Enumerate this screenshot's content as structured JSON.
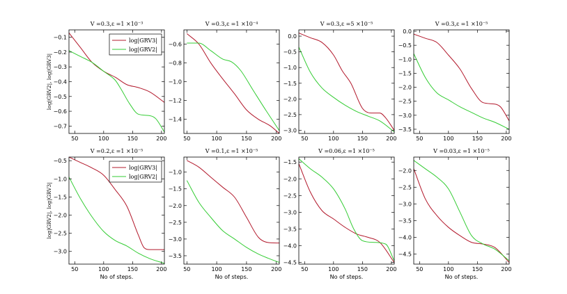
{
  "figure": {
    "ylabel": "log|GRV2|,   log|GRV3|",
    "xlabel": "No of steps."
  },
  "legend": {
    "series3_label": "log|GRV3|",
    "series2_label": "log|GRV2|"
  },
  "colors": {
    "grv3": "#b2182b",
    "grv2": "#33cc33",
    "axes": "#000000"
  },
  "chart_data": [
    {
      "type": "line",
      "title": "V =0.3,ε =1 ×10⁻³",
      "xlabel": "",
      "ylabel": "log|GRV2|,   log|GRV3|",
      "xlim": [
        40,
        205
      ],
      "ylim": [
        -0.75,
        -0.05
      ],
      "xticks": [
        50,
        100,
        150,
        200
      ],
      "yticks": [
        -0.1,
        -0.2,
        -0.3,
        -0.4,
        -0.5,
        -0.6,
        -0.7
      ],
      "ytick_labels": [
        "−0.1",
        "−0.2",
        "−0.3",
        "−0.4",
        "−0.5",
        "−0.6",
        "−0.7"
      ],
      "legend": true,
      "series": [
        {
          "name": "log|GRV3|",
          "color": "#b2182b",
          "x": [
            40,
            60,
            80,
            100,
            120,
            140,
            160,
            180,
            205
          ],
          "y": [
            -0.07,
            -0.17,
            -0.27,
            -0.33,
            -0.37,
            -0.42,
            -0.44,
            -0.47,
            -0.54
          ]
        },
        {
          "name": "log|GRV2|",
          "color": "#33cc33",
          "x": [
            40,
            60,
            80,
            100,
            120,
            130,
            145,
            160,
            180,
            190,
            205
          ],
          "y": [
            -0.19,
            -0.23,
            -0.27,
            -0.33,
            -0.39,
            -0.45,
            -0.55,
            -0.62,
            -0.63,
            -0.65,
            -0.74
          ]
        }
      ]
    },
    {
      "type": "line",
      "title": "V =0.3,ε =1 ×10⁻⁴",
      "xlabel": "",
      "ylabel": "",
      "xlim": [
        45,
        205
      ],
      "ylim": [
        -1.55,
        -0.45
      ],
      "xticks": [
        50,
        100,
        150,
        200
      ],
      "yticks": [
        -0.6,
        -0.8,
        -1.0,
        -1.2,
        -1.4
      ],
      "ytick_labels": [
        "−0.6",
        "−0.8",
        "−1.0",
        "−1.2",
        "−1.4"
      ],
      "legend": false,
      "series": [
        {
          "name": "log|GRV3|",
          "color": "#b2182b",
          "x": [
            50,
            70,
            90,
            110,
            130,
            150,
            170,
            190,
            205
          ],
          "y": [
            -0.49,
            -0.6,
            -0.8,
            -0.97,
            -1.13,
            -1.3,
            -1.4,
            -1.47,
            -1.55
          ]
        },
        {
          "name": "log|GRV2|",
          "color": "#33cc33",
          "x": [
            50,
            70,
            90,
            110,
            125,
            140,
            160,
            180,
            205
          ],
          "y": [
            -0.59,
            -0.59,
            -0.67,
            -0.76,
            -0.79,
            -0.88,
            -1.08,
            -1.28,
            -1.52
          ]
        }
      ]
    },
    {
      "type": "line",
      "title": "V =0.3,ε =5 ×10⁻⁵",
      "xlabel": "",
      "ylabel": "",
      "xlim": [
        40,
        205
      ],
      "ylim": [
        -3.1,
        0.2
      ],
      "xticks": [
        50,
        100,
        150,
        200
      ],
      "yticks": [
        0.0,
        -0.5,
        -1.0,
        -1.5,
        -2.0,
        -2.5,
        -3.0
      ],
      "ytick_labels": [
        "0.0",
        "−0.5",
        "−1.0",
        "−1.5",
        "−2.0",
        "−2.5",
        "−3.0"
      ],
      "legend": false,
      "series": [
        {
          "name": "log|GRV3|",
          "color": "#b2182b",
          "x": [
            40,
            60,
            80,
            100,
            115,
            130,
            150,
            165,
            180,
            190,
            205
          ],
          "y": [
            0.1,
            -0.05,
            -0.2,
            -0.6,
            -1.1,
            -1.5,
            -2.3,
            -2.45,
            -2.45,
            -2.6,
            -3.0
          ]
        },
        {
          "name": "log|GRV2|",
          "color": "#33cc33",
          "x": [
            40,
            60,
            80,
            100,
            120,
            140,
            160,
            180,
            205
          ],
          "y": [
            -0.35,
            -1.15,
            -1.65,
            -1.95,
            -2.2,
            -2.4,
            -2.55,
            -2.7,
            -3.05
          ]
        }
      ]
    },
    {
      "type": "line",
      "title": "V =0.3,ε =1 ×10⁻⁵",
      "xlabel": "",
      "ylabel": "",
      "xlim": [
        40,
        205
      ],
      "ylim": [
        -3.65,
        0.05
      ],
      "xticks": [
        50,
        100,
        150,
        200
      ],
      "yticks": [
        0.0,
        -0.5,
        -1.0,
        -1.5,
        -2.0,
        -2.5,
        -3.0,
        -3.5
      ],
      "ytick_labels": [
        "0.0",
        "−0.5",
        "−1.0",
        "−1.5",
        "−2.0",
        "−2.5",
        "−3.0",
        "−3.5"
      ],
      "legend": false,
      "series": [
        {
          "name": "log|GRV3|",
          "color": "#b2182b",
          "x": [
            40,
            60,
            80,
            100,
            120,
            140,
            160,
            180,
            190,
            205
          ],
          "y": [
            -0.1,
            -0.25,
            -0.4,
            -0.85,
            -1.35,
            -2.05,
            -2.55,
            -2.6,
            -2.7,
            -3.2
          ]
        },
        {
          "name": "log|GRV2|",
          "color": "#33cc33",
          "x": [
            40,
            60,
            80,
            100,
            120,
            140,
            160,
            180,
            205
          ],
          "y": [
            -0.8,
            -1.65,
            -2.2,
            -2.45,
            -2.7,
            -2.9,
            -3.1,
            -3.25,
            -3.5
          ]
        }
      ]
    },
    {
      "type": "line",
      "title": "V =0.2,ε =1 ×10⁻⁵",
      "xlabel": "No of steps.",
      "ylabel": "log|GRV2|,   log|GRV3|",
      "xlim": [
        40,
        205
      ],
      "ylim": [
        -3.35,
        -0.4
      ],
      "xticks": [
        50,
        100,
        150,
        200
      ],
      "yticks": [
        -0.5,
        -1.0,
        -1.5,
        -2.0,
        -2.5,
        -3.0
      ],
      "ytick_labels": [
        "−0.5",
        "−1.0",
        "−1.5",
        "−2.0",
        "−2.5",
        "−3.0"
      ],
      "legend": true,
      "series": [
        {
          "name": "log|GRV3|",
          "color": "#b2182b",
          "x": [
            40,
            60,
            80,
            100,
            120,
            140,
            160,
            170,
            180,
            205
          ],
          "y": [
            -0.4,
            -0.55,
            -0.7,
            -0.9,
            -1.3,
            -1.75,
            -2.55,
            -2.9,
            -2.95,
            -2.95
          ]
        },
        {
          "name": "log|GRV2|",
          "color": "#33cc33",
          "x": [
            40,
            60,
            80,
            100,
            120,
            140,
            160,
            180,
            205
          ],
          "y": [
            -0.95,
            -1.55,
            -2.05,
            -2.45,
            -2.7,
            -2.85,
            -3.05,
            -3.2,
            -3.33
          ]
        }
      ]
    },
    {
      "type": "line",
      "title": "V =0.1,ε =1 ×10⁻⁵",
      "xlabel": "No of steps.",
      "ylabel": "",
      "xlim": [
        45,
        205
      ],
      "ylim": [
        -3.75,
        -0.55
      ],
      "xticks": [
        50,
        100,
        150,
        200
      ],
      "yticks": [
        -1.0,
        -1.5,
        -2.0,
        -2.5,
        -3.0,
        -3.5
      ],
      "ytick_labels": [
        "−1.0",
        "−1.5",
        "−2.0",
        "−2.5",
        "−3.0",
        "−3.5"
      ],
      "legend": false,
      "series": [
        {
          "name": "log|GRV3|",
          "color": "#b2182b",
          "x": [
            50,
            70,
            90,
            110,
            130,
            150,
            170,
            185,
            205
          ],
          "y": [
            -0.65,
            -0.85,
            -1.15,
            -1.45,
            -1.75,
            -2.35,
            -2.95,
            -3.1,
            -3.12
          ]
        },
        {
          "name": "log|GRV2|",
          "color": "#33cc33",
          "x": [
            50,
            70,
            90,
            110,
            130,
            150,
            170,
            190,
            205
          ],
          "y": [
            -1.25,
            -1.9,
            -2.35,
            -2.75,
            -3.0,
            -3.25,
            -3.45,
            -3.6,
            -3.7
          ]
        }
      ]
    },
    {
      "type": "line",
      "title": "V =0.06,ε =1 ×10⁻⁵",
      "xlabel": "No of steps.",
      "ylabel": "",
      "xlim": [
        40,
        205
      ],
      "ylim": [
        -4.55,
        -1.35
      ],
      "xticks": [
        50,
        100,
        150,
        200
      ],
      "yticks": [
        -1.5,
        -2.0,
        -2.5,
        -3.0,
        -3.5,
        -4.0,
        -4.5
      ],
      "ytick_labels": [
        "−1.5",
        "−2.0",
        "−2.5",
        "−3.0",
        "−3.5",
        "−4.0",
        "−4.5"
      ],
      "legend": false,
      "series": [
        {
          "name": "log|GRV3|",
          "color": "#b2182b",
          "x": [
            40,
            60,
            80,
            100,
            120,
            140,
            160,
            180,
            205
          ],
          "y": [
            -1.55,
            -2.4,
            -2.95,
            -3.2,
            -3.45,
            -3.65,
            -3.75,
            -3.9,
            -4.5
          ]
        },
        {
          "name": "log|GRV2|",
          "color": "#33cc33",
          "x": [
            40,
            60,
            80,
            100,
            120,
            135,
            150,
            170,
            190,
            205
          ],
          "y": [
            -1.4,
            -1.7,
            -1.95,
            -2.3,
            -2.9,
            -3.5,
            -3.85,
            -3.9,
            -3.95,
            -4.45
          ]
        }
      ]
    },
    {
      "type": "line",
      "title": "V =0.03,ε =1 ×10⁻⁵",
      "xlabel": "No of steps.",
      "ylabel": "",
      "xlim": [
        40,
        205
      ],
      "ylim": [
        -4.8,
        -1.6
      ],
      "xticks": [
        50,
        100,
        150,
        200
      ],
      "yticks": [
        -2.0,
        -2.5,
        -3.0,
        -3.5,
        -4.0,
        -4.5
      ],
      "ytick_labels": [
        "−2.0",
        "−2.5",
        "−3.0",
        "−3.5",
        "−4.0",
        "−4.5"
      ],
      "legend": false,
      "series": [
        {
          "name": "log|GRV3|",
          "color": "#b2182b",
          "x": [
            40,
            60,
            80,
            100,
            120,
            140,
            160,
            180,
            205
          ],
          "y": [
            -1.95,
            -2.85,
            -3.35,
            -3.7,
            -3.95,
            -4.15,
            -4.2,
            -4.3,
            -4.75
          ]
        },
        {
          "name": "log|GRV2|",
          "color": "#33cc33",
          "x": [
            40,
            60,
            80,
            100,
            120,
            140,
            160,
            180,
            205
          ],
          "y": [
            -1.7,
            -1.95,
            -2.2,
            -2.55,
            -3.25,
            -3.95,
            -4.2,
            -4.35,
            -4.7
          ]
        }
      ]
    }
  ]
}
